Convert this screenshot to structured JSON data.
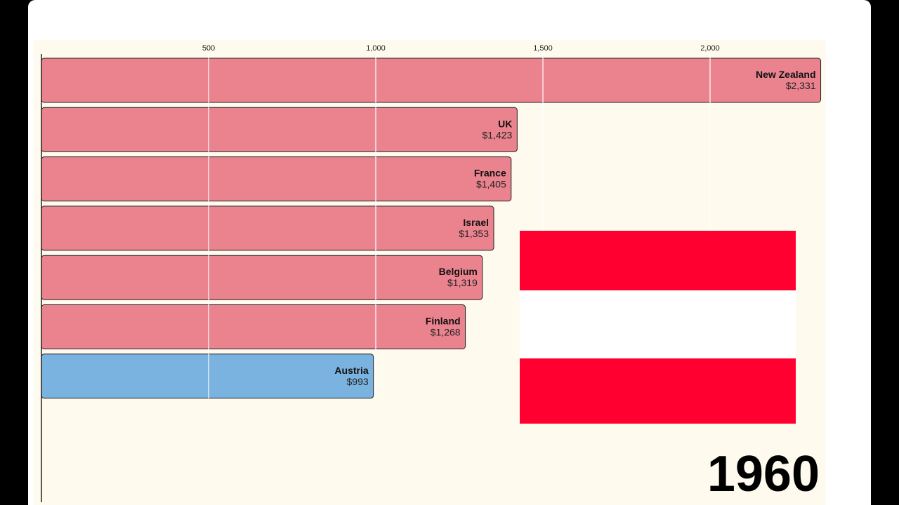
{
  "chart_data": {
    "type": "bar",
    "orientation": "horizontal",
    "title": "",
    "year": "1960",
    "categories": [
      "New Zealand",
      "UK",
      "France",
      "Israel",
      "Belgium",
      "Finland",
      "Austria"
    ],
    "values": [
      2331,
      1423,
      1405,
      1353,
      1319,
      1268,
      993
    ],
    "value_labels": [
      "$2,331",
      "$1,423",
      "$1,405",
      "$1,353",
      "$1,319",
      "$1,268",
      "$993"
    ],
    "highlight": "Austria",
    "xticks": [
      500,
      1000,
      1500,
      2000
    ],
    "xtick_labels": [
      "500",
      "1,000",
      "1,500",
      "2,000"
    ],
    "xlim": [
      0,
      2370
    ],
    "grid": true,
    "colors": {
      "default": "#eb838f",
      "highlight": "#7ab3e0",
      "background": "#fefaee",
      "gridline": "#ffffff"
    },
    "flag": {
      "country": "Austria",
      "stripes": [
        "#ff0030",
        "#ffffff",
        "#ff0030"
      ]
    }
  }
}
